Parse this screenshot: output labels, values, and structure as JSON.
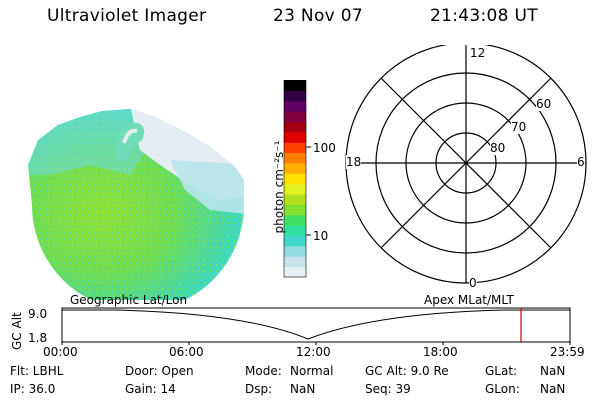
{
  "header": {
    "title": "Ultraviolet Imager",
    "date": "23 Nov 07",
    "time": "21:43:08 UT"
  },
  "colorbar": {
    "label": "photon cm⁻²s⁻¹",
    "ticks": [
      "100",
      "10"
    ]
  },
  "polar_grid": {
    "mlt_labels": [
      "12",
      "18",
      "6",
      "0"
    ],
    "lat_labels": [
      "60",
      "70",
      "80"
    ]
  },
  "orbit_plot": {
    "left_label": "Geographic Lat/Lon",
    "right_label": "Apex MLat/MLT",
    "axis_label": "GC Alt",
    "y_ticks": [
      "9.0",
      "1.8"
    ],
    "x_ticks": [
      "00:00",
      "06:00",
      "12:00",
      "18:00",
      "23:59"
    ],
    "marker_color": "#cc0000"
  },
  "info": {
    "row1": {
      "flt": "Flt: LBHL",
      "door": "Door: Open",
      "mode_label": "Mode:",
      "mode_value": "Normal",
      "gcalt": "GC Alt: 9.0 Re",
      "glat_label": "GLat:",
      "glat_value": "NaN"
    },
    "row2": {
      "ip": "IP: 36.0",
      "gain": "Gain: 14",
      "dsp_label": "Dsp:",
      "dsp_value": "NaN",
      "seq": "Seq: 39",
      "glon_label": "GLon:",
      "glon_value": "NaN"
    }
  },
  "colors": {
    "colorbar": [
      "#e8f0f4",
      "#c8e4ea",
      "#90dce0",
      "#40d8c8",
      "#30e0a0",
      "#40e060",
      "#80e030",
      "#b0e020",
      "#e0f020",
      "#ffe000",
      "#ffb000",
      "#ff8000",
      "#ff4000",
      "#e00000",
      "#a00010",
      "#800040",
      "#600060",
      "#300040",
      "#000000"
    ]
  }
}
